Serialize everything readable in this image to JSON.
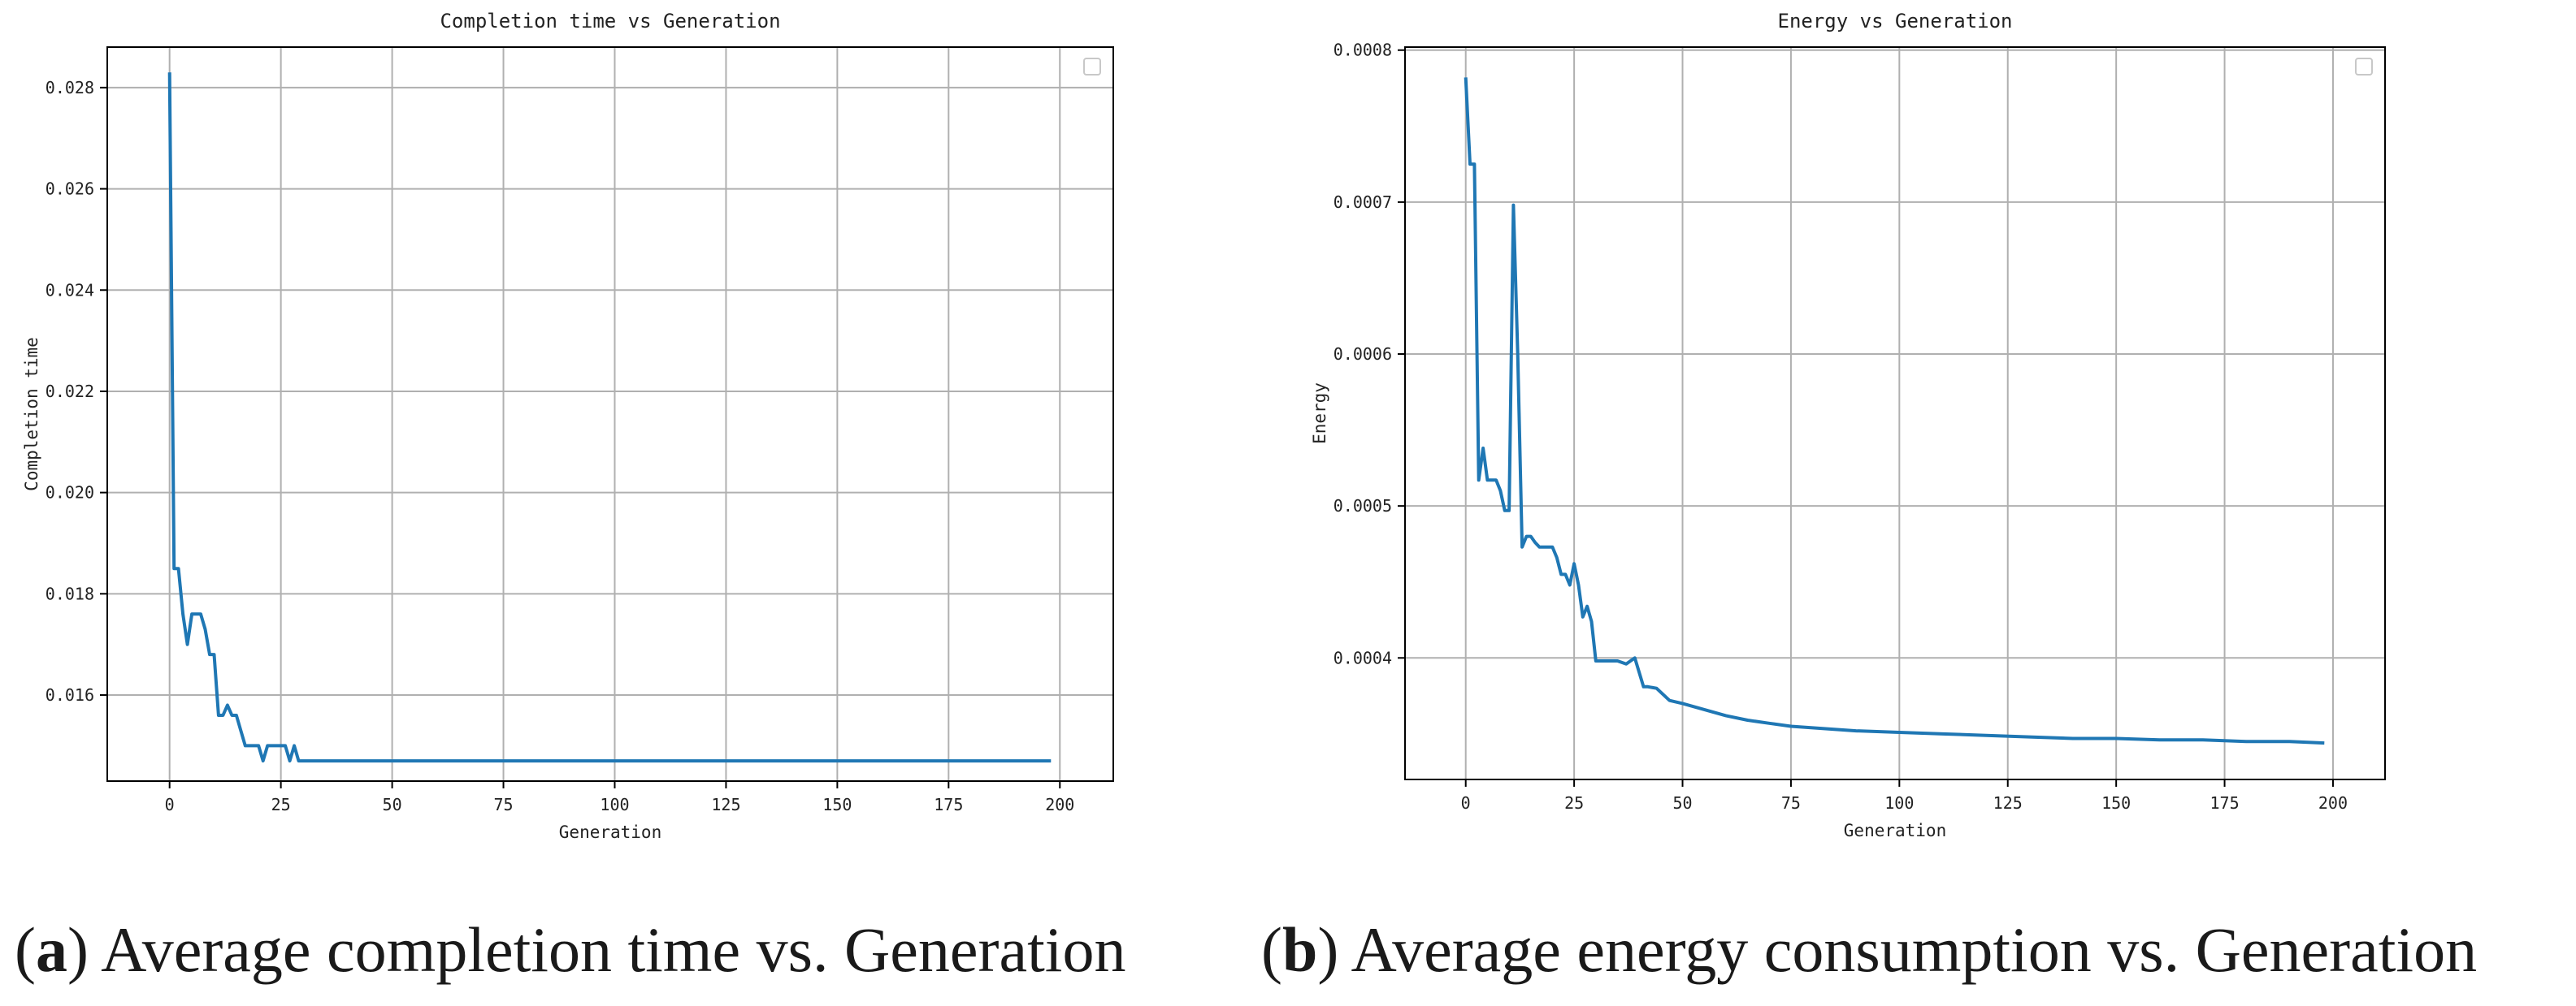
{
  "captions": [
    {
      "paren_open": "(",
      "letter": "a",
      "text": ") Average completion time vs. Generation"
    },
    {
      "paren_open": "(",
      "letter": "b",
      "text": ") Average energy consumption vs. Generation"
    }
  ],
  "colors": {
    "line": "#1f77b4",
    "grid": "#b0b0b0",
    "axis": "#000000"
  },
  "chart_data": [
    {
      "type": "line",
      "title": "Completion time vs Generation",
      "xlabel": "Generation",
      "ylabel": "Completion time",
      "xlim": [
        -14,
        212
      ],
      "ylim": [
        0.0143,
        0.0288
      ],
      "xticks": [
        0,
        25,
        50,
        75,
        100,
        125,
        150,
        175,
        200
      ],
      "xtick_labels": [
        "0",
        "25",
        "50",
        "75",
        "100",
        "125",
        "150",
        "175",
        "200"
      ],
      "yticks": [
        0.016,
        0.018,
        0.02,
        0.022,
        0.024,
        0.026,
        0.028
      ],
      "ytick_labels": [
        "0.016",
        "0.018",
        "0.020",
        "0.022",
        "0.024",
        "0.026",
        "0.028"
      ],
      "grid": true,
      "legend": "empty box, top-right",
      "series": [
        {
          "name": "",
          "x": [
            0,
            1,
            2,
            3,
            4,
            5,
            6,
            7,
            8,
            9,
            10,
            11,
            12,
            13,
            14,
            15,
            16,
            17,
            18,
            19,
            20,
            21,
            22,
            23,
            24,
            25,
            26,
            27,
            28,
            29,
            30,
            40,
            60,
            80,
            100,
            120,
            140,
            160,
            180,
            198
          ],
          "y": [
            0.0283,
            0.0185,
            0.0185,
            0.0176,
            0.017,
            0.0176,
            0.0176,
            0.0176,
            0.0173,
            0.0168,
            0.0168,
            0.0156,
            0.0156,
            0.0158,
            0.0156,
            0.0156,
            0.0153,
            0.015,
            0.015,
            0.015,
            0.015,
            0.0147,
            0.015,
            0.015,
            0.015,
            0.015,
            0.015,
            0.0147,
            0.015,
            0.0147,
            0.0147,
            0.0147,
            0.0147,
            0.0147,
            0.0147,
            0.0147,
            0.0147,
            0.0147,
            0.0147,
            0.0147
          ]
        }
      ]
    },
    {
      "type": "line",
      "title": "Energy vs Generation",
      "xlabel": "Generation",
      "ylabel": "Energy",
      "xlim": [
        -14,
        212
      ],
      "ylim": [
        0.00032,
        0.000802
      ],
      "xticks": [
        0,
        25,
        50,
        75,
        100,
        125,
        150,
        175,
        200
      ],
      "xtick_labels": [
        "0",
        "25",
        "50",
        "75",
        "100",
        "125",
        "150",
        "175",
        "200"
      ],
      "yticks": [
        0.0004,
        0.0005,
        0.0006,
        0.0007,
        0.0008
      ],
      "ytick_labels": [
        "0.0004",
        "0.0005",
        "0.0006",
        "0.0007",
        "0.0008"
      ],
      "grid": true,
      "legend": "empty box, top-right",
      "series": [
        {
          "name": "",
          "x": [
            0,
            1,
            2,
            3,
            4,
            5,
            6,
            7,
            8,
            9,
            10,
            11,
            12,
            13,
            14,
            15,
            16,
            17,
            18,
            19,
            20,
            21,
            22,
            23,
            24,
            25,
            26,
            27,
            28,
            29,
            30,
            35,
            37,
            38,
            39,
            41,
            42,
            44,
            47,
            50,
            55,
            60,
            65,
            70,
            75,
            80,
            90,
            100,
            110,
            120,
            130,
            140,
            150,
            160,
            170,
            180,
            190,
            198
          ],
          "y": [
            0.000782,
            0.000725,
            0.000725,
            0.000517,
            0.000538,
            0.000517,
            0.000517,
            0.000517,
            0.00051,
            0.000497,
            0.000497,
            0.000698,
            0.0006,
            0.000473,
            0.00048,
            0.00048,
            0.000476,
            0.000473,
            0.000473,
            0.000473,
            0.000473,
            0.000466,
            0.000455,
            0.000455,
            0.000448,
            0.000462,
            0.000448,
            0.000427,
            0.000434,
            0.000424,
            0.000398,
            0.000398,
            0.000396,
            0.000398,
            0.0004,
            0.000381,
            0.000381,
            0.00038,
            0.000372,
            0.00037,
            0.000366,
            0.000362,
            0.000359,
            0.000357,
            0.000355,
            0.000354,
            0.000352,
            0.000351,
            0.00035,
            0.000349,
            0.000348,
            0.000347,
            0.000347,
            0.000346,
            0.000346,
            0.000345,
            0.000345,
            0.000344
          ]
        }
      ]
    }
  ]
}
